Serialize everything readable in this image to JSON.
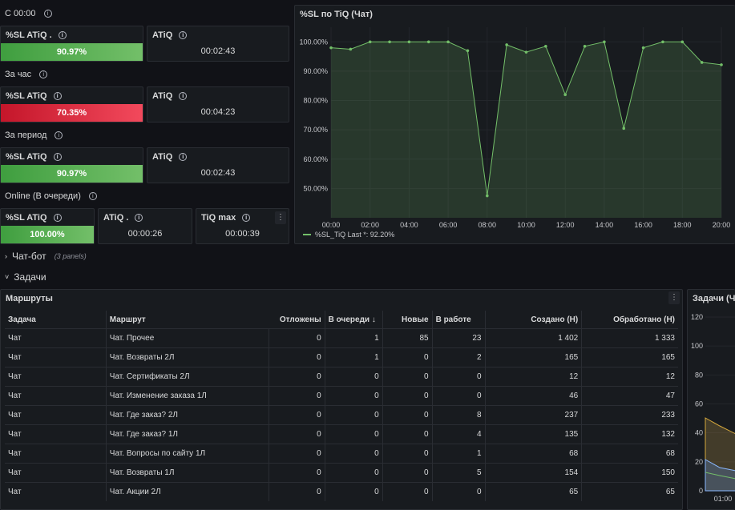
{
  "rows": {
    "r1": {
      "title": "С 00:00"
    },
    "r2": {
      "title": "За час"
    },
    "r3": {
      "title": "За период"
    },
    "r4": {
      "title": "Online (В очереди)"
    }
  },
  "stats": {
    "s1": {
      "title": "%SL ATiQ .",
      "value": "90.97%"
    },
    "a1": {
      "title": "ATiQ",
      "value": "00:02:43"
    },
    "s2": {
      "title": "%SL ATiQ",
      "value": "70.35%"
    },
    "a2": {
      "title": "ATiQ",
      "value": "00:04:23"
    },
    "s3": {
      "title": "%SL ATiQ",
      "value": "90.97%"
    },
    "a3": {
      "title": "ATiQ",
      "value": "00:02:43"
    },
    "s4": {
      "title": "%SL ATiQ",
      "value": "100.00%"
    },
    "a4": {
      "title": "ATiQ .",
      "value": "00:00:26"
    },
    "m4": {
      "title": "TiQ max",
      "value": "00:00:39"
    }
  },
  "sections": {
    "chatbot": {
      "title": "Чат-бот",
      "sub": "(3 panels)"
    },
    "tasks": {
      "title": "Задачи"
    }
  },
  "sl_chart": {
    "title": "%SL по TiQ (Чат)",
    "legend": "%SL_TiQ  Last *: 92.20%"
  },
  "chart_data": {
    "type": "area",
    "title": "%SL по TiQ (Чат)",
    "x": [
      "00:00",
      "01:00",
      "02:00",
      "03:00",
      "04:00",
      "05:00",
      "06:00",
      "07:00",
      "08:00",
      "09:00",
      "10:00",
      "11:00",
      "12:00",
      "13:00",
      "14:00",
      "15:00",
      "16:00",
      "17:00",
      "18:00",
      "19:00",
      "20:00"
    ],
    "x_ticks": [
      "00:00",
      "02:00",
      "04:00",
      "06:00",
      "08:00",
      "10:00",
      "12:00",
      "14:00",
      "16:00",
      "18:00",
      "20:00"
    ],
    "y_ticks": [
      "50.00%",
      "60.00%",
      "70.00%",
      "80.00%",
      "90.00%",
      "100.00%"
    ],
    "ylim": [
      40,
      105
    ],
    "series": [
      {
        "name": "%SL_TiQ",
        "color": "#73bf69",
        "values": [
          98,
          97.5,
          100,
          100,
          100,
          100,
          100,
          97,
          47.5,
          99,
          96.5,
          98.5,
          82,
          98.5,
          100,
          70.5,
          98,
          100,
          100,
          93,
          92.2
        ]
      }
    ],
    "legend": "bottom-left"
  },
  "routes": {
    "title": "Маршруты",
    "headers": [
      "Задача",
      "Маршрут",
      "Отложены",
      "В очереди",
      "Новые",
      "В работе",
      "Создано (Н)",
      "Обработано (Н)"
    ],
    "sort_icon": "arrow-down-icon",
    "rows": [
      [
        "Чат",
        "Чат. Прочее",
        "0",
        "1",
        "85",
        "23",
        "1 402",
        "1 333"
      ],
      [
        "Чат",
        "Чат. Возвраты 2Л",
        "0",
        "1",
        "0",
        "2",
        "165",
        "165"
      ],
      [
        "Чат",
        "Чат. Сертификаты 2Л",
        "0",
        "0",
        "0",
        "0",
        "12",
        "12"
      ],
      [
        "Чат",
        "Чат. Изменение заказа 1Л",
        "0",
        "0",
        "0",
        "0",
        "46",
        "47"
      ],
      [
        "Чат",
        "Чат. Где заказ? 2Л",
        "0",
        "0",
        "0",
        "8",
        "237",
        "233"
      ],
      [
        "Чат",
        "Чат. Где заказ? 1Л",
        "0",
        "0",
        "0",
        "4",
        "135",
        "132"
      ],
      [
        "Чат",
        "Чат. Вопросы по сайту 1Л",
        "0",
        "0",
        "0",
        "1",
        "68",
        "68"
      ],
      [
        "Чат",
        "Чат. Возвраты 1Л",
        "0",
        "0",
        "0",
        "5",
        "154",
        "150"
      ],
      [
        "Чат",
        "Чат. Акции 2Л",
        "0",
        "0",
        "0",
        "0",
        "65",
        "65"
      ]
    ]
  },
  "tasks_chart": {
    "title": "Задачи (Чат",
    "y_ticks": [
      "0",
      "20",
      "40",
      "60",
      "80",
      "100",
      "120"
    ],
    "x_tick": "01:00"
  }
}
